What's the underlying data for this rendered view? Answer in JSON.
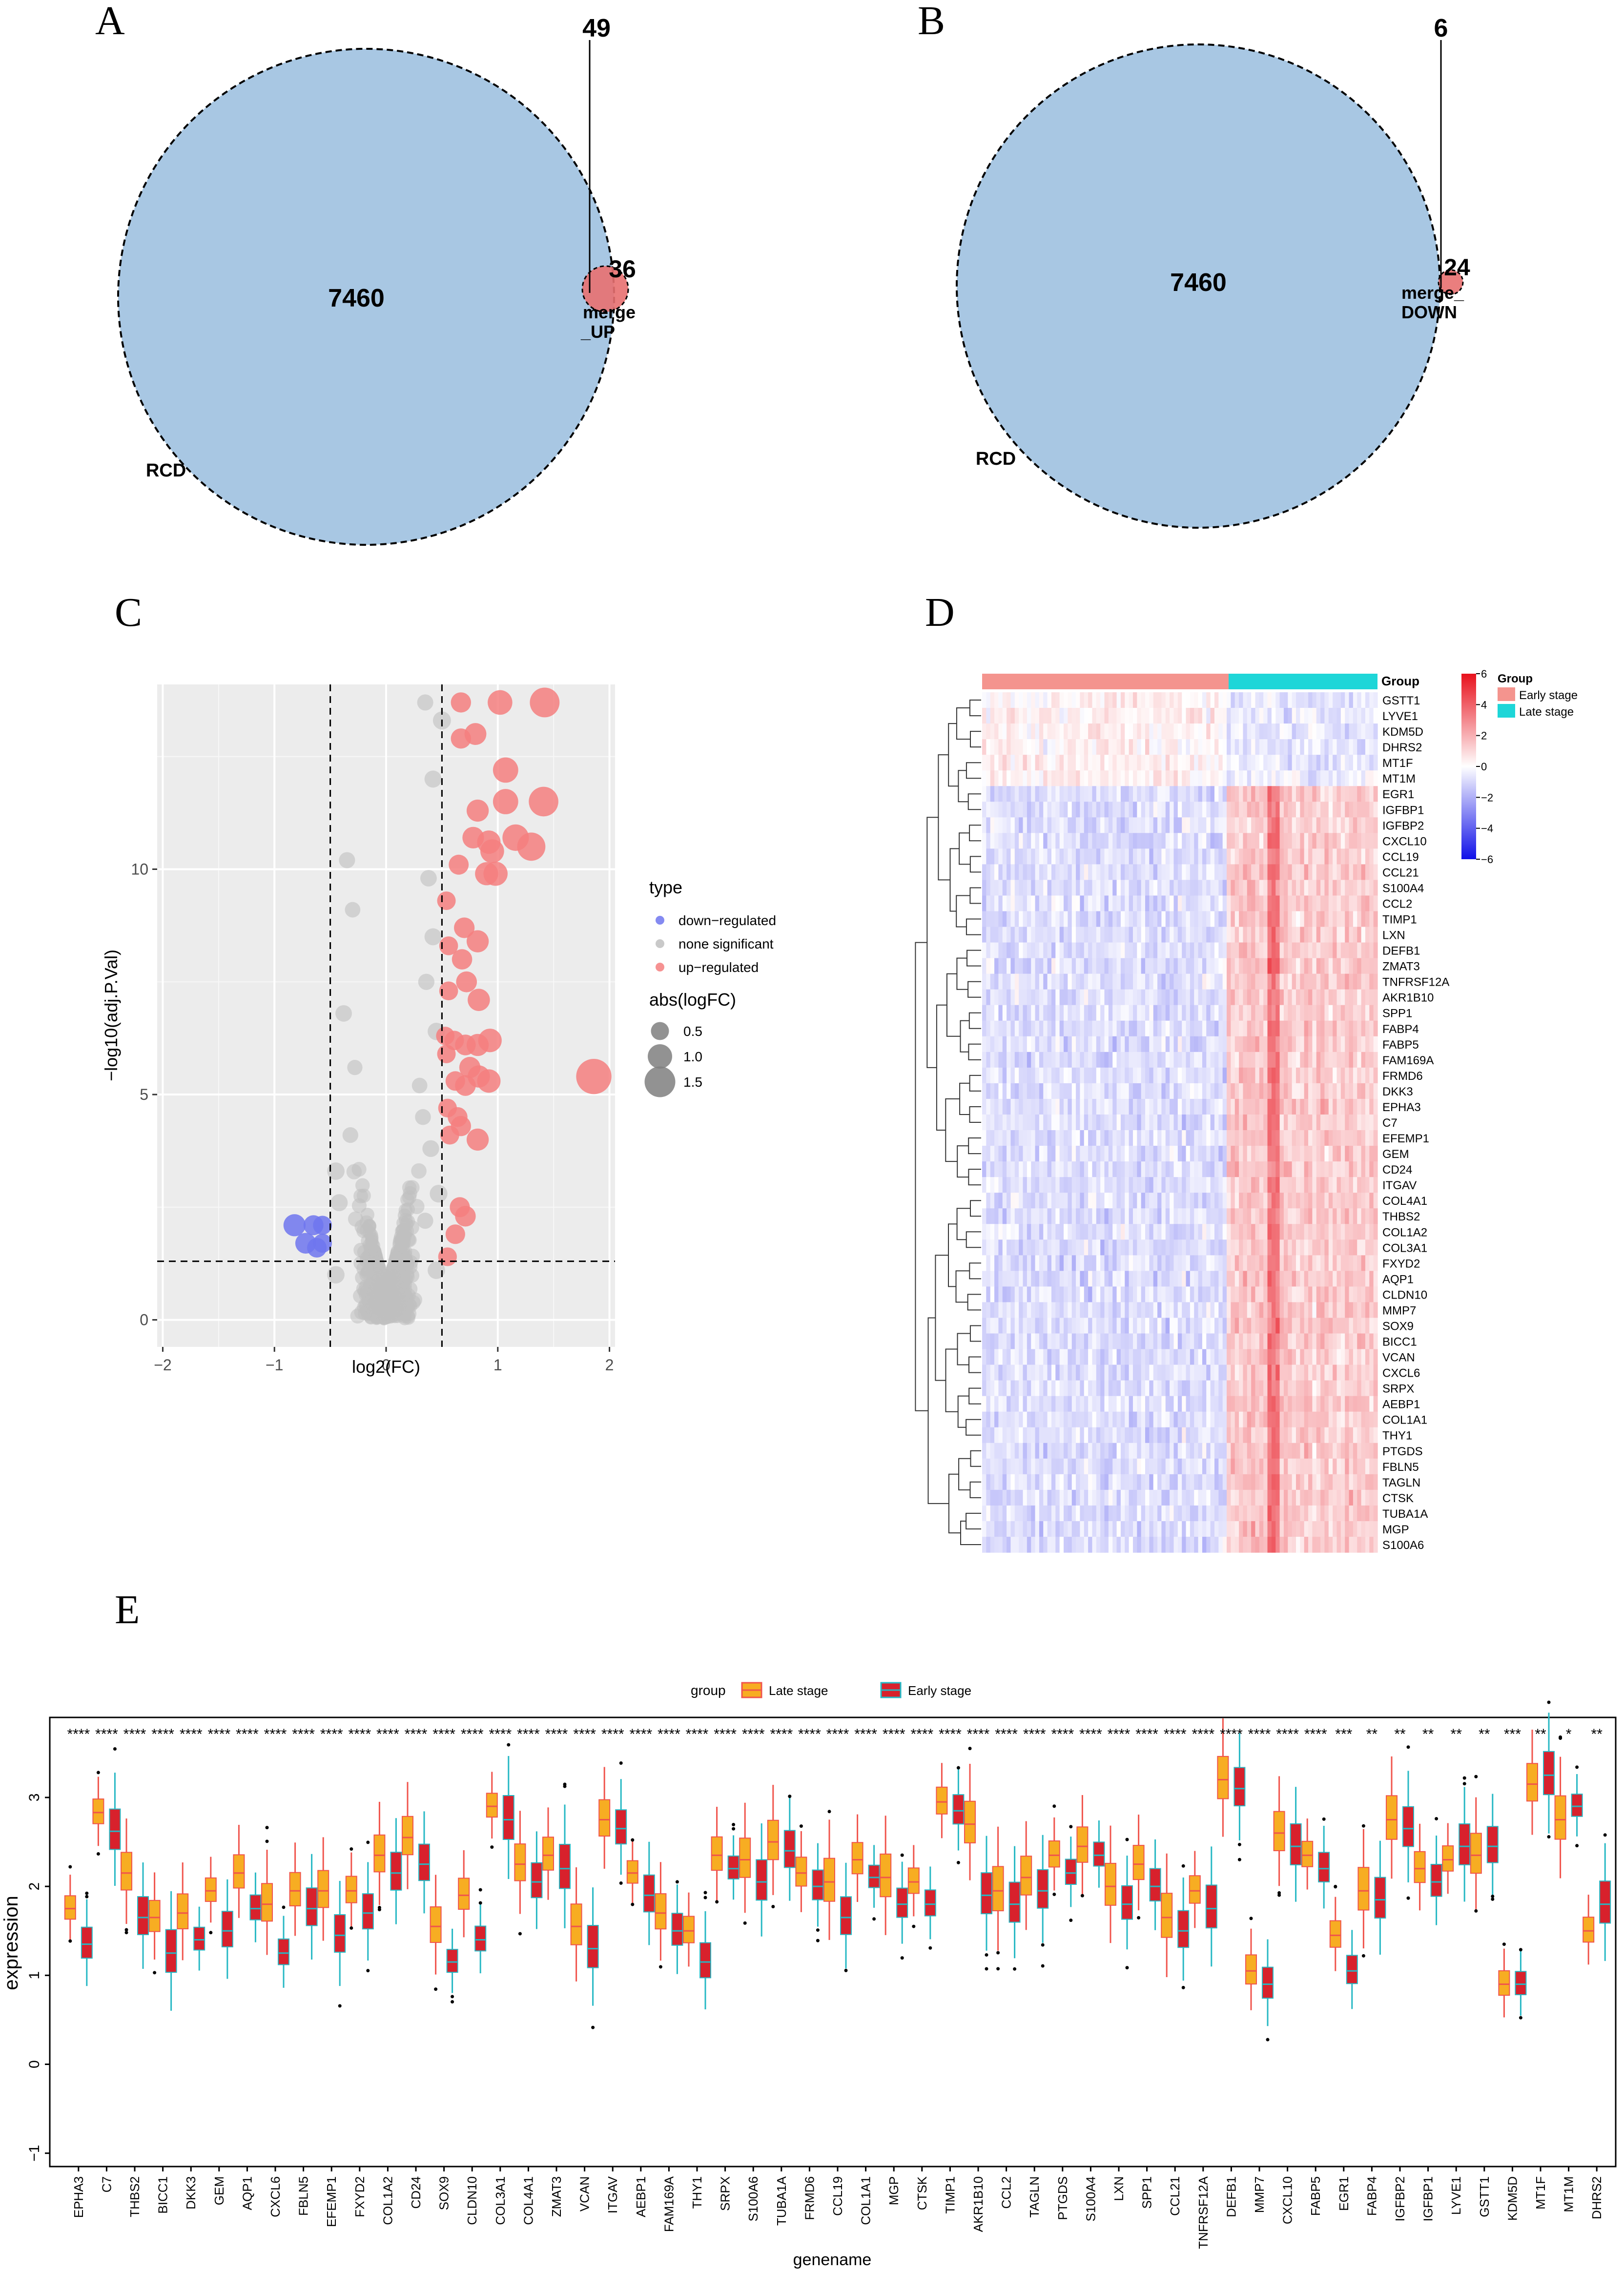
{
  "colors": {
    "venn_big": "#a8c7e3",
    "venn_small": "#e87070",
    "up": "#f47f7f",
    "down": "#6f75ee",
    "ns": "#c0c0c0",
    "panel_bg": "#ececec",
    "heat_high": "#e8111c",
    "heat_mid": "#ffffff",
    "heat_low": "#1010e8",
    "early": "#f4948e",
    "late": "#1ed6d8",
    "box_late": "#f7ad22",
    "box_early": "#d8212c",
    "whisk_late": "#f0544c",
    "whisk_early": "#27b8c4"
  },
  "panels": {
    "A": {
      "label": "A",
      "big_name": "RCD",
      "small_name_1": "merge",
      "small_name_2": "_UP",
      "count_big": "7460",
      "count_inter": "36",
      "count_small": "49"
    },
    "B": {
      "label": "B",
      "big_name": "RCD",
      "small_name_1": "merge_",
      "small_name_2": "DOWN",
      "count_big": "7460",
      "count_inter": "24",
      "count_small": "6"
    },
    "C": {
      "label": "C"
    },
    "D": {
      "label": "D"
    },
    "E": {
      "label": "E"
    }
  },
  "chart_data": [
    {
      "panel": "C",
      "type": "scatter",
      "xlabel": "log2(FC)",
      "ylabel": "−log10(adj.P.Val)",
      "xlim": [
        -2.05,
        2.05
      ],
      "ylim": [
        -0.6,
        14.1
      ],
      "xticks": [
        "−2",
        "−1",
        "0",
        "1",
        "2"
      ],
      "xtick_values": [
        -2,
        -1,
        0,
        1,
        2
      ],
      "yticks": [
        "0",
        "5",
        "10"
      ],
      "ytick_values": [
        0,
        5,
        10
      ],
      "cutoff_lines": {
        "x": [
          -0.5,
          0.5
        ],
        "y": 1.3
      },
      "legend_type_title": "type",
      "legend_types": [
        "down−regulated",
        "none significant",
        "up−regulated"
      ],
      "legend_size_title": "abs(logFC)",
      "legend_sizes": [
        "0.5",
        "1.0",
        "1.5"
      ],
      "legend_size_values": [
        0.5,
        1.0,
        1.5
      ],
      "up_points": [
        [
          0.67,
          13.7
        ],
        [
          1.02,
          13.7
        ],
        [
          1.42,
          13.7
        ],
        [
          0.67,
          12.9
        ],
        [
          0.8,
          13.0
        ],
        [
          1.07,
          12.2
        ],
        [
          1.07,
          11.5
        ],
        [
          1.41,
          11.5
        ],
        [
          0.82,
          11.3
        ],
        [
          0.78,
          10.7
        ],
        [
          0.92,
          10.6
        ],
        [
          0.95,
          10.4
        ],
        [
          1.16,
          10.7
        ],
        [
          1.3,
          10.5
        ],
        [
          0.65,
          10.1
        ],
        [
          0.9,
          9.9
        ],
        [
          0.98,
          9.9
        ],
        [
          0.54,
          9.3
        ],
        [
          0.7,
          8.7
        ],
        [
          0.82,
          8.4
        ],
        [
          0.56,
          8.3
        ],
        [
          0.68,
          8.0
        ],
        [
          0.72,
          7.5
        ],
        [
          0.56,
          7.3
        ],
        [
          0.83,
          7.1
        ],
        [
          0.53,
          6.3
        ],
        [
          0.61,
          6.2
        ],
        [
          0.71,
          6.1
        ],
        [
          0.82,
          6.1
        ],
        [
          0.93,
          6.2
        ],
        [
          0.54,
          5.9
        ],
        [
          0.75,
          5.6
        ],
        [
          0.62,
          5.3
        ],
        [
          0.71,
          5.2
        ],
        [
          0.83,
          5.4
        ],
        [
          0.92,
          5.3
        ],
        [
          1.86,
          5.4
        ],
        [
          0.55,
          4.7
        ],
        [
          0.64,
          4.5
        ],
        [
          0.67,
          4.3
        ],
        [
          0.57,
          4.1
        ],
        [
          0.82,
          4.0
        ],
        [
          0.66,
          2.5
        ],
        [
          0.71,
          2.3
        ],
        [
          0.62,
          1.9
        ],
        [
          0.55,
          1.4
        ]
      ],
      "down_points": [
        [
          -0.82,
          2.1
        ],
        [
          -0.65,
          2.1
        ],
        [
          -0.57,
          2.1
        ],
        [
          -0.72,
          1.7
        ],
        [
          -0.62,
          1.6
        ],
        [
          -0.57,
          1.7
        ]
      ],
      "ns_sample_points": [
        [
          0.35,
          13.7
        ],
        [
          0.5,
          13.3
        ],
        [
          0.42,
          12.0
        ],
        [
          -0.35,
          10.2
        ],
        [
          -0.3,
          9.1
        ],
        [
          0.38,
          9.8
        ],
        [
          0.42,
          8.5
        ],
        [
          0.36,
          7.5
        ],
        [
          0.45,
          6.4
        ],
        [
          -0.38,
          6.8
        ],
        [
          -0.28,
          5.6
        ],
        [
          0.3,
          5.2
        ],
        [
          0.33,
          4.5
        ],
        [
          -0.32,
          4.1
        ],
        [
          0.4,
          3.8
        ],
        [
          -0.45,
          3.3
        ],
        [
          0.47,
          2.8
        ],
        [
          -0.42,
          2.6
        ],
        [
          0.35,
          2.2
        ],
        [
          0.45,
          1.1
        ],
        [
          -0.45,
          1.0
        ]
      ]
    },
    {
      "panel": "D",
      "type": "heatmap",
      "legend_title": "Group",
      "groups": [
        "Early stage",
        "Late stage"
      ],
      "color_scale_ticks": [
        "6",
        "4",
        "2",
        "0",
        "−2",
        "−4",
        "−6"
      ],
      "color_scale_values": [
        6,
        4,
        2,
        0,
        -2,
        -4,
        -6
      ],
      "n_samples_early": 60,
      "n_samples_late": 37,
      "genes": [
        "GSTT1",
        "LYVE1",
        "KDM5D",
        "DHRS2",
        "MT1F",
        "MT1M",
        "EGR1",
        "IGFBP1",
        "IGFBP2",
        "CXCL10",
        "CCL19",
        "CCL21",
        "S100A4",
        "CCL2",
        "TIMP1",
        "LXN",
        "DEFB1",
        "ZMAT3",
        "TNFRSF12A",
        "AKR1B10",
        "SPP1",
        "FABP4",
        "FABP5",
        "FAM169A",
        "FRMD6",
        "DKK3",
        "EPHA3",
        "C7",
        "EFEMP1",
        "GEM",
        "CD24",
        "ITGAV",
        "COL4A1",
        "THBS2",
        "COL1A2",
        "COL3A1",
        "FXYD2",
        "AQP1",
        "CLDN10",
        "MMP7",
        "SOX9",
        "BICC1",
        "VCAN",
        "CXCL6",
        "SRPX",
        "AEBP1",
        "COL1A1",
        "THY1",
        "PTGDS",
        "FBLN5",
        "TAGLN",
        "CTSK",
        "TUBA1A",
        "MGP",
        "S100A6"
      ],
      "up_in_late": [
        0,
        0,
        0,
        0,
        0,
        0,
        1,
        1,
        1,
        1,
        1,
        1,
        1,
        1,
        1,
        1,
        1,
        1,
        1,
        1,
        1,
        1,
        1,
        1,
        1,
        1,
        1,
        1,
        1,
        1,
        1,
        1,
        1,
        1,
        1,
        1,
        1,
        1,
        1,
        1,
        1,
        1,
        1,
        1,
        1,
        1,
        1,
        1,
        1,
        1,
        1,
        1,
        1,
        1,
        1
      ]
    },
    {
      "panel": "E",
      "type": "box",
      "legend_title": "group",
      "series_names": [
        "Late stage",
        "Early stage"
      ],
      "xlabel": "genename",
      "ylabel": "expression",
      "ylim": [
        -1.15,
        3.9
      ],
      "yticks": [
        "−1",
        "0",
        "1",
        "2",
        "3"
      ],
      "ytick_values": [
        -1,
        0,
        1,
        2,
        3
      ],
      "categories": [
        "EPHA3",
        "C7",
        "THBS2",
        "BICC1",
        "DKK3",
        "GEM",
        "AQP1",
        "CXCL6",
        "FBLN5",
        "EFEMP1",
        "FXYD2",
        "COL1A2",
        "CD24",
        "SOX9",
        "CLDN10",
        "COL3A1",
        "COL4A1",
        "ZMAT3",
        "VCAN",
        "ITGAV",
        "AEBP1",
        "FAM169A",
        "THY1",
        "SRPX",
        "S100A6",
        "TUBA1A",
        "FRMD6",
        "CCL19",
        "COL1A1",
        "MGP",
        "CTSK",
        "TIMP1",
        "AKR1B10",
        "CCL2",
        "TAGLN",
        "PTGDS",
        "S100A4",
        "LXN",
        "SPP1",
        "CCL21",
        "TNFRSF12A",
        "DEFB1",
        "MMP7",
        "CXCL10",
        "FABP5",
        "EGR1",
        "FABP4",
        "IGFBP2",
        "IGFBP1",
        "LYVE1",
        "GSTT1",
        "KDM5D",
        "MT1F",
        "MT1M",
        "DHRS2"
      ],
      "significance": [
        "****",
        "****",
        "****",
        "****",
        "****",
        "****",
        "****",
        "****",
        "****",
        "****",
        "****",
        "****",
        "****",
        "****",
        "****",
        "****",
        "****",
        "****",
        "****",
        "****",
        "****",
        "****",
        "****",
        "****",
        "****",
        "****",
        "****",
        "****",
        "****",
        "****",
        "****",
        "****",
        "****",
        "****",
        "****",
        "****",
        "****",
        "****",
        "****",
        "****",
        "****",
        "****",
        "****",
        "****",
        "****",
        "***",
        "**",
        "**",
        "**",
        "**",
        "**",
        "***",
        "**",
        "*",
        "**"
      ],
      "late_median": [
        1.75,
        2.83,
        2.15,
        1.65,
        1.7,
        1.95,
        2.15,
        1.8,
        1.95,
        1.95,
        1.95,
        2.35,
        2.55,
        1.55,
        1.9,
        2.9,
        2.25,
        2.35,
        1.55,
        2.75,
        2.15,
        1.7,
        1.5,
        2.35,
        2.3,
        2.5,
        2.15,
        2.05,
        2.3,
        2.1,
        2.05,
        2.95,
        2.7,
        1.95,
        2.1,
        2.35,
        2.45,
        2.0,
        2.25,
        1.65,
        1.95,
        3.2,
        1.05,
        2.6,
        2.35,
        1.45,
        1.95,
        2.75,
        2.2,
        2.3,
        2.35,
        0.9,
        3.15,
        2.75,
        1.5
      ],
      "early_median": [
        1.35,
        2.62,
        1.65,
        1.25,
        1.4,
        1.5,
        1.75,
        1.25,
        1.75,
        1.45,
        1.7,
        2.15,
        2.25,
        1.15,
        1.4,
        2.75,
        2.05,
        2.2,
        1.3,
        2.65,
        1.9,
        1.5,
        1.15,
        2.2,
        2.05,
        2.4,
        2.0,
        1.65,
        2.1,
        1.8,
        1.8,
        2.85,
        1.9,
        1.8,
        1.95,
        2.15,
        2.35,
        1.8,
        2.0,
        1.5,
        1.75,
        3.1,
        0.9,
        2.45,
        2.2,
        1.05,
        1.85,
        2.65,
        2.05,
        2.45,
        2.45,
        0.9,
        3.25,
        2.9,
        1.8
      ]
    }
  ]
}
